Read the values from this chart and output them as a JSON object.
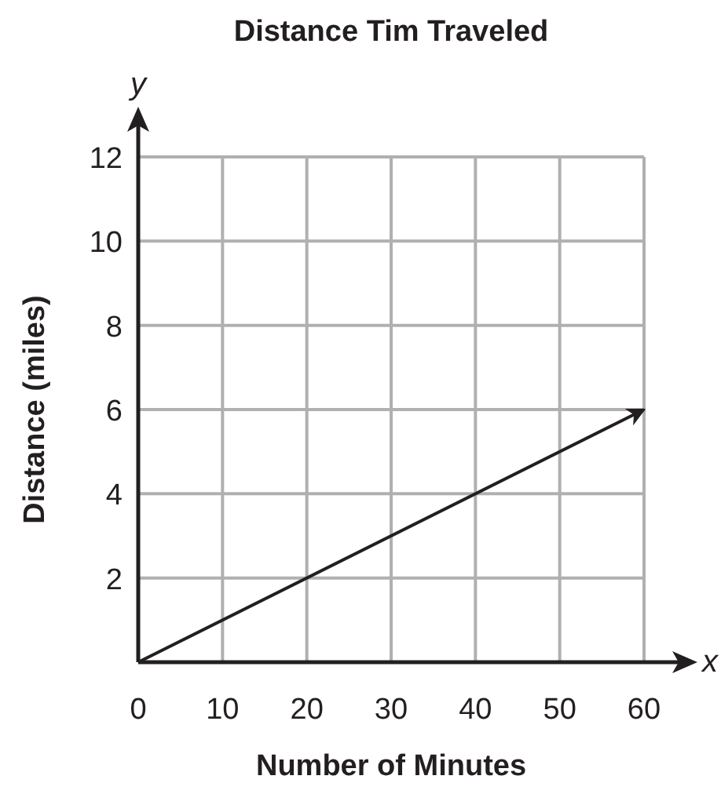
{
  "chart_data": {
    "type": "line",
    "title": "Distance Tim Traveled",
    "xlabel": "Number of Minutes",
    "ylabel": "Distance (miles)",
    "annotations": [
      "x",
      "y"
    ],
    "x": [
      0,
      60
    ],
    "series": [
      {
        "color": "#231f20",
        "values": [
          0,
          6
        ]
      }
    ],
    "xlim": [
      0,
      60
    ],
    "ylim": [
      0,
      12
    ],
    "xticks": [
      0,
      10,
      20,
      30,
      40,
      50,
      60
    ],
    "yticks": [
      {
        "value": 0,
        "label": null
      },
      2,
      4,
      6,
      8,
      10,
      12
    ],
    "grid": true,
    "marker": "none",
    "line_style": "solid"
  }
}
